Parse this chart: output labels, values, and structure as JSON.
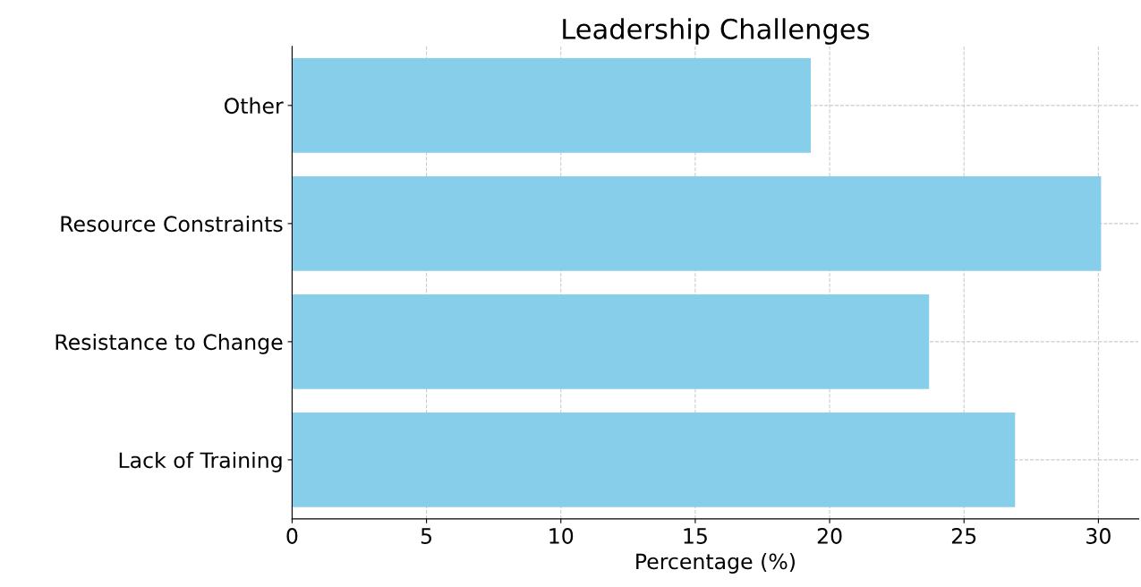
{
  "chart_data": {
    "type": "bar",
    "orientation": "horizontal",
    "title": "Leadership Challenges",
    "xlabel": "Percentage (%)",
    "categories": [
      "Other",
      "Resource Constraints",
      "Resistance to Change",
      "Lack of Training"
    ],
    "values": [
      19.3,
      30.1,
      23.7,
      26.9
    ],
    "color": "#87ceeb",
    "xlim": [
      0,
      31.5
    ],
    "xticks": [
      0,
      5,
      10,
      15,
      20,
      25,
      30
    ],
    "grid": true
  }
}
